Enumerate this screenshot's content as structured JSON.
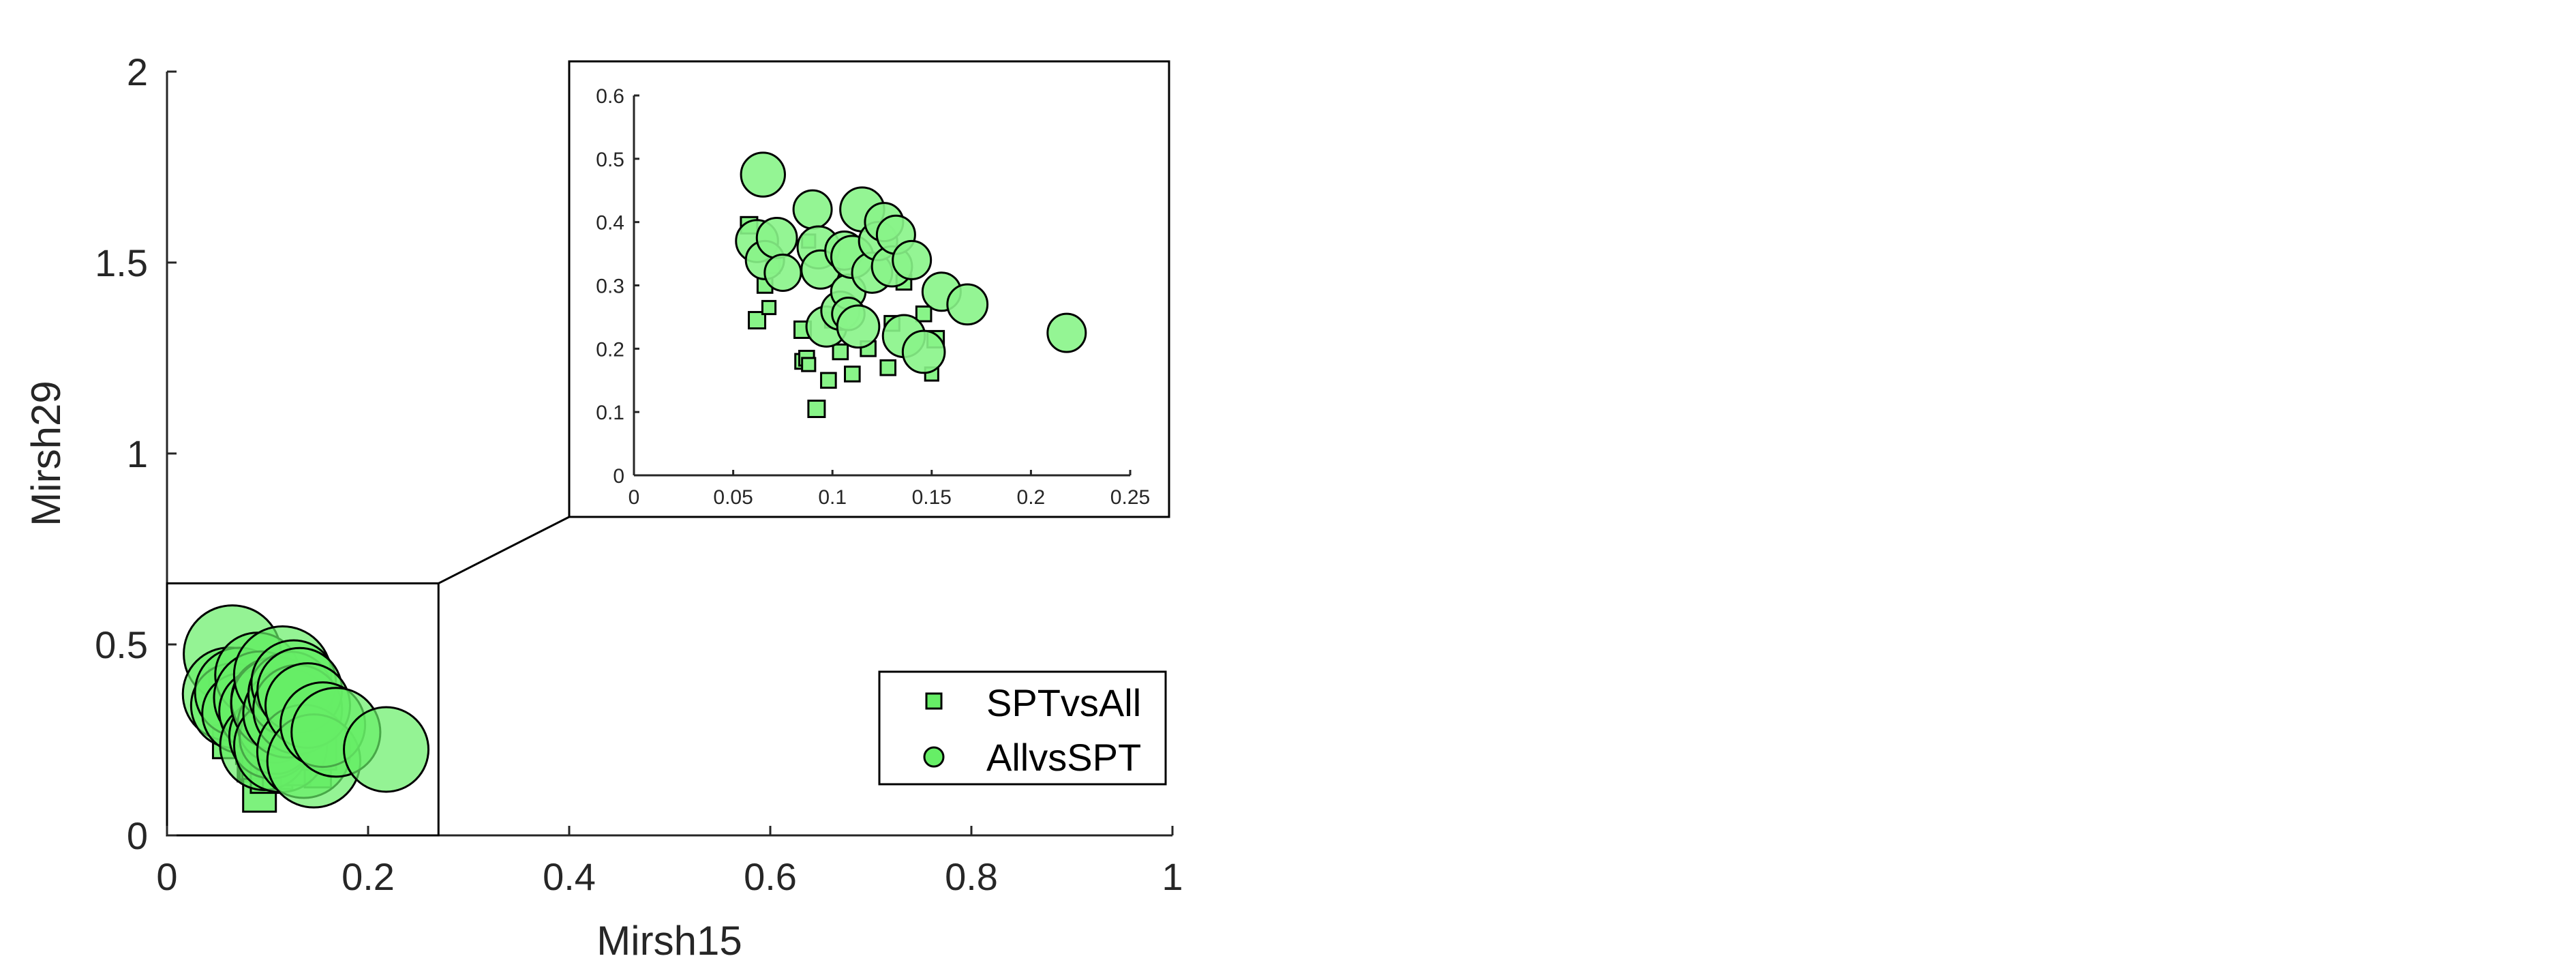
{
  "chart_data": {
    "type": "scatter",
    "main": {
      "xlabel": "Mirsh15",
      "ylabel": "Mirsh29",
      "xlim": [
        0,
        1
      ],
      "ylim": [
        0,
        2
      ],
      "xticks": [
        "0",
        "0.2",
        "0.4",
        "0.6",
        "0.8",
        "1"
      ],
      "yticks": [
        "0",
        "0.5",
        "1",
        "1.5",
        "2"
      ]
    },
    "inset": {
      "xlim": [
        0,
        0.25
      ],
      "ylim": [
        0,
        0.6
      ],
      "xticks": [
        "0",
        "0.05",
        "0.1",
        "0.15",
        "0.2",
        "0.25"
      ],
      "yticks": [
        "0",
        "0.1",
        "0.2",
        "0.3",
        "0.4",
        "0.5",
        "0.6"
      ],
      "zoom_region": {
        "x": [
          0,
          0.27
        ],
        "y": [
          0,
          0.66
        ]
      }
    },
    "colors": {
      "marker_fill": "#66ee66",
      "inset_fill": "#88f488",
      "edge": "#000000"
    },
    "legend": {
      "location": "bottom-right",
      "entries": [
        "SPTvsAll",
        "AllvsSPT"
      ]
    },
    "series": [
      {
        "name": "SPTvsAll",
        "marker": "square",
        "points": [
          {
            "x": 0.058,
            "y": 0.395,
            "s": 1.0
          },
          {
            "x": 0.066,
            "y": 0.3,
            "s": 0.9
          },
          {
            "x": 0.062,
            "y": 0.245,
            "s": 1.0
          },
          {
            "x": 0.068,
            "y": 0.265,
            "s": 0.8
          },
          {
            "x": 0.085,
            "y": 0.23,
            "s": 1.0
          },
          {
            "x": 0.085,
            "y": 0.18,
            "s": 0.9
          },
          {
            "x": 0.087,
            "y": 0.185,
            "s": 0.9
          },
          {
            "x": 0.088,
            "y": 0.175,
            "s": 0.8
          },
          {
            "x": 0.092,
            "y": 0.105,
            "s": 1.0
          },
          {
            "x": 0.098,
            "y": 0.15,
            "s": 0.9
          },
          {
            "x": 0.1,
            "y": 0.245,
            "s": 0.9
          },
          {
            "x": 0.104,
            "y": 0.195,
            "s": 0.9
          },
          {
            "x": 0.11,
            "y": 0.16,
            "s": 0.9
          },
          {
            "x": 0.118,
            "y": 0.2,
            "s": 0.9
          },
          {
            "x": 0.128,
            "y": 0.17,
            "s": 0.9
          },
          {
            "x": 0.13,
            "y": 0.24,
            "s": 0.9
          },
          {
            "x": 0.136,
            "y": 0.305,
            "s": 0.9
          },
          {
            "x": 0.146,
            "y": 0.255,
            "s": 0.9
          },
          {
            "x": 0.15,
            "y": 0.16,
            "s": 0.8
          },
          {
            "x": 0.152,
            "y": 0.215,
            "s": 1.0
          },
          {
            "x": 0.07,
            "y": 0.33,
            "s": 0.8
          },
          {
            "x": 0.088,
            "y": 0.37,
            "s": 0.8
          }
        ]
      },
      {
        "name": "AllvsSPT",
        "marker": "circle",
        "points": [
          {
            "x": 0.065,
            "y": 0.475,
            "s": 1.15
          },
          {
            "x": 0.062,
            "y": 0.37,
            "s": 1.1
          },
          {
            "x": 0.066,
            "y": 0.34,
            "s": 1.0
          },
          {
            "x": 0.072,
            "y": 0.375,
            "s": 1.05
          },
          {
            "x": 0.075,
            "y": 0.32,
            "s": 0.95
          },
          {
            "x": 0.09,
            "y": 0.42,
            "s": 1.0
          },
          {
            "x": 0.093,
            "y": 0.36,
            "s": 1.1
          },
          {
            "x": 0.094,
            "y": 0.325,
            "s": 1.0
          },
          {
            "x": 0.097,
            "y": 0.235,
            "s": 1.05
          },
          {
            "x": 0.104,
            "y": 0.26,
            "s": 1.0
          },
          {
            "x": 0.106,
            "y": 0.355,
            "s": 1.0
          },
          {
            "x": 0.108,
            "y": 0.29,
            "s": 0.9
          },
          {
            "x": 0.108,
            "y": 0.255,
            "s": 0.85
          },
          {
            "x": 0.11,
            "y": 0.345,
            "s": 1.1
          },
          {
            "x": 0.113,
            "y": 0.235,
            "s": 1.1
          },
          {
            "x": 0.115,
            "y": 0.42,
            "s": 1.15
          },
          {
            "x": 0.12,
            "y": 0.32,
            "s": 1.05
          },
          {
            "x": 0.123,
            "y": 0.37,
            "s": 1.0
          },
          {
            "x": 0.126,
            "y": 0.4,
            "s": 1.0
          },
          {
            "x": 0.13,
            "y": 0.33,
            "s": 1.05
          },
          {
            "x": 0.132,
            "y": 0.38,
            "s": 1.0
          },
          {
            "x": 0.136,
            "y": 0.22,
            "s": 1.1
          },
          {
            "x": 0.14,
            "y": 0.34,
            "s": 1.0
          },
          {
            "x": 0.146,
            "y": 0.195,
            "s": 1.1
          },
          {
            "x": 0.155,
            "y": 0.29,
            "s": 1.0
          },
          {
            "x": 0.168,
            "y": 0.27,
            "s": 1.05
          },
          {
            "x": 0.218,
            "y": 0.225,
            "s": 1.0
          }
        ]
      }
    ]
  }
}
